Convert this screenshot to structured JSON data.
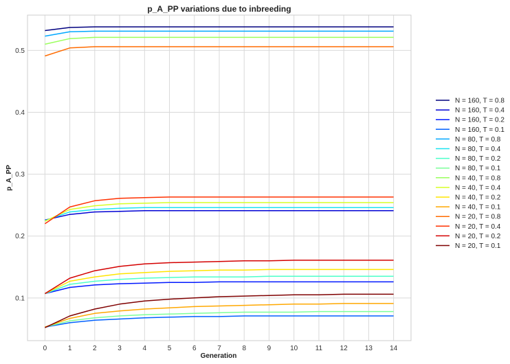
{
  "chart_data": {
    "type": "line",
    "title": "p_A_PP variations due to inbreeding",
    "xlabel": "Generation",
    "ylabel": "p_A_PP",
    "x": [
      0,
      1,
      2,
      3,
      4,
      5,
      6,
      7,
      8,
      9,
      10,
      11,
      12,
      13,
      14
    ],
    "xticks": [
      "0",
      "1",
      "2",
      "3",
      "4",
      "5",
      "6",
      "7",
      "8",
      "9",
      "10",
      "11",
      "12",
      "13",
      "14"
    ],
    "yticks": [
      "0.1",
      "0.2",
      "0.3",
      "0.4",
      "0.5"
    ],
    "ytick_values": [
      0.1,
      0.2,
      0.3,
      0.4,
      0.5
    ],
    "xlim": [
      -0.7,
      14.7
    ],
    "ylim": [
      0.031,
      0.557
    ],
    "grid": true,
    "legend": "outside-right",
    "series": [
      {
        "name": "N = 160, T = 0.8",
        "color": "#00007f",
        "values": [
          0.532,
          0.537,
          0.538,
          0.538,
          0.538,
          0.538,
          0.538,
          0.538,
          0.538,
          0.538,
          0.538,
          0.538,
          0.538,
          0.538,
          0.538
        ]
      },
      {
        "name": "N = 160, T = 0.4",
        "color": "#0000d4",
        "values": [
          0.226,
          0.235,
          0.239,
          0.24,
          0.241,
          0.241,
          0.241,
          0.241,
          0.241,
          0.241,
          0.241,
          0.241,
          0.241,
          0.241,
          0.241
        ]
      },
      {
        "name": "N = 160, T = 0.2",
        "color": "#0018ff",
        "values": [
          0.107,
          0.117,
          0.121,
          0.123,
          0.124,
          0.125,
          0.125,
          0.126,
          0.126,
          0.126,
          0.126,
          0.126,
          0.126,
          0.126,
          0.126
        ]
      },
      {
        "name": "N = 160, T = 0.1",
        "color": "#0060ff",
        "values": [
          0.053,
          0.06,
          0.064,
          0.066,
          0.068,
          0.069,
          0.07,
          0.07,
          0.071,
          0.071,
          0.071,
          0.071,
          0.071,
          0.071,
          0.071
        ]
      },
      {
        "name": "N = 80, T = 0.8",
        "color": "#00a8ff",
        "values": [
          0.523,
          0.53,
          0.531,
          0.531,
          0.531,
          0.531,
          0.531,
          0.531,
          0.531,
          0.531,
          0.531,
          0.531,
          0.531,
          0.531,
          0.531
        ]
      },
      {
        "name": "N = 80, T = 0.4",
        "color": "#1ce3f0",
        "values": [
          0.225,
          0.239,
          0.243,
          0.245,
          0.246,
          0.246,
          0.246,
          0.246,
          0.246,
          0.246,
          0.246,
          0.246,
          0.246,
          0.246,
          0.246
        ]
      },
      {
        "name": "N = 80, T = 0.2",
        "color": "#4cffca",
        "values": [
          0.107,
          0.122,
          0.127,
          0.13,
          0.132,
          0.133,
          0.134,
          0.134,
          0.134,
          0.135,
          0.135,
          0.135,
          0.135,
          0.135,
          0.135
        ]
      },
      {
        "name": "N = 80, T = 0.1",
        "color": "#7cff9a",
        "values": [
          0.053,
          0.063,
          0.068,
          0.071,
          0.073,
          0.074,
          0.075,
          0.076,
          0.077,
          0.077,
          0.077,
          0.078,
          0.078,
          0.078,
          0.078
        ]
      },
      {
        "name": "N = 40, T = 0.8",
        "color": "#9aff5c",
        "values": [
          0.51,
          0.519,
          0.521,
          0.521,
          0.521,
          0.521,
          0.521,
          0.521,
          0.521,
          0.521,
          0.521,
          0.521,
          0.521,
          0.521,
          0.521
        ]
      },
      {
        "name": "N = 40, T = 0.4",
        "color": "#d7ff26",
        "values": [
          0.224,
          0.243,
          0.249,
          0.252,
          0.253,
          0.254,
          0.254,
          0.254,
          0.254,
          0.254,
          0.254,
          0.254,
          0.254,
          0.254,
          0.254
        ]
      },
      {
        "name": "N = 40, T = 0.2",
        "color": "#ffe500",
        "values": [
          0.107,
          0.127,
          0.134,
          0.139,
          0.141,
          0.143,
          0.144,
          0.145,
          0.145,
          0.146,
          0.146,
          0.146,
          0.146,
          0.146,
          0.146
        ]
      },
      {
        "name": "N = 40, T = 0.1",
        "color": "#ffa800",
        "values": [
          0.053,
          0.067,
          0.075,
          0.079,
          0.082,
          0.084,
          0.086,
          0.087,
          0.088,
          0.089,
          0.09,
          0.09,
          0.091,
          0.091,
          0.091
        ]
      },
      {
        "name": "N = 20, T = 0.8",
        "color": "#ff6b00",
        "values": [
          0.491,
          0.504,
          0.506,
          0.506,
          0.506,
          0.506,
          0.506,
          0.506,
          0.506,
          0.506,
          0.506,
          0.506,
          0.506,
          0.506,
          0.506
        ]
      },
      {
        "name": "N = 20, T = 0.4",
        "color": "#ff3000",
        "values": [
          0.22,
          0.247,
          0.257,
          0.261,
          0.262,
          0.263,
          0.263,
          0.263,
          0.263,
          0.263,
          0.263,
          0.263,
          0.263,
          0.263,
          0.263
        ]
      },
      {
        "name": "N = 20, T = 0.2",
        "color": "#d40000",
        "values": [
          0.107,
          0.132,
          0.144,
          0.151,
          0.155,
          0.157,
          0.158,
          0.159,
          0.16,
          0.16,
          0.161,
          0.161,
          0.161,
          0.161,
          0.161
        ]
      },
      {
        "name": "N = 20, T = 0.1",
        "color": "#7f0000",
        "values": [
          0.052,
          0.071,
          0.082,
          0.09,
          0.095,
          0.098,
          0.1,
          0.102,
          0.103,
          0.104,
          0.105,
          0.105,
          0.106,
          0.106,
          0.106
        ]
      }
    ]
  }
}
